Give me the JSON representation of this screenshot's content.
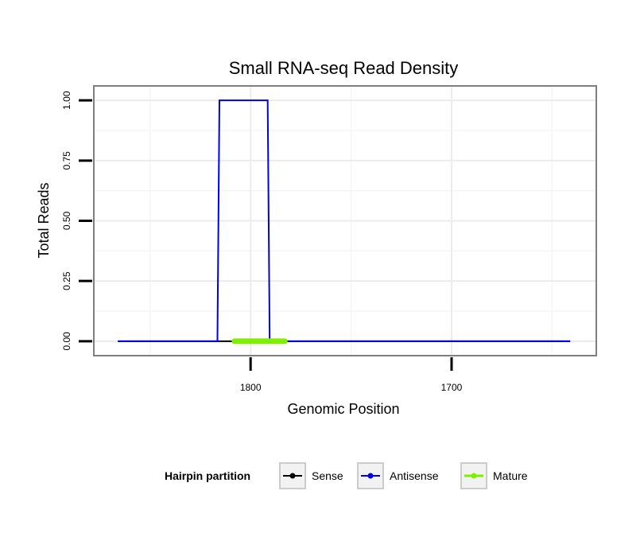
{
  "chart_data": {
    "type": "line",
    "title": "Small RNA-seq Read Density",
    "xlabel": "Genomic Position",
    "ylabel": "Total Reads",
    "xlim": [
      1878,
      1628
    ],
    "ylim": [
      -0.06,
      1.06
    ],
    "x_reversed": true,
    "x_ticks": [
      1800,
      1700
    ],
    "x_tick_labels": [
      "1800",
      "1700"
    ],
    "y_ticks": [
      0,
      0.25,
      0.5,
      0.75,
      1
    ],
    "y_tick_labels": [
      "0.00",
      "0.25",
      "0.50",
      "0.75",
      "1.00"
    ],
    "grid": true,
    "legend_position": "bottom",
    "legend_title": "Hairpin partition",
    "series": [
      {
        "name": "Sense",
        "color": "#000000",
        "x": [
          1866,
          1641
        ],
        "y": [
          0,
          0
        ]
      },
      {
        "name": "Antisense",
        "color": "#0000ee",
        "x": [
          1866,
          1816.5,
          1815.5,
          1791.5,
          1790.5,
          1641
        ],
        "y": [
          0,
          0,
          1,
          1,
          0,
          0
        ]
      },
      {
        "name": "Mature",
        "color": "#7fee00",
        "x": [
          1808,
          1783
        ],
        "y": [
          0,
          0
        ]
      }
    ]
  }
}
